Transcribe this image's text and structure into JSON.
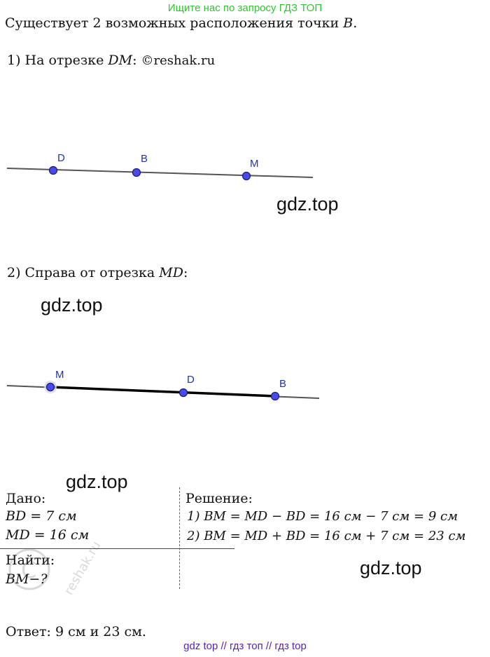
{
  "banner": {
    "text": "Ищите нас по запросу ГДЗ ТОП",
    "color": "#2fc72f"
  },
  "intro": {
    "text": "Существует 2 возможных расположения точки ",
    "point": "B",
    "end": "."
  },
  "case1": {
    "prefix": "1) На отрезке ",
    "segment": "DM",
    "colon": ": ",
    "copyright": "©reshak.ru"
  },
  "figure1": {
    "labels": [
      "D",
      "B",
      "M"
    ]
  },
  "case2": {
    "prefix": "2) Справа от отрезка ",
    "segment": "MD",
    "colon": ":"
  },
  "figure2": {
    "labels": [
      "M",
      "D",
      "B"
    ]
  },
  "watermarks": [
    "gdz.top",
    "gdz.top",
    "gdz.top",
    "gdz.top"
  ],
  "given": {
    "title": "Дано:",
    "lines": [
      "BD = 7 см",
      "MD = 16 см"
    ],
    "find_title": "Найти:",
    "find": "BM−?"
  },
  "solution": {
    "title": "Решение:",
    "lines": [
      "1) BM = MD − BD =  16 см − 7 см = 9 см",
      "2) BM = MD + BD = 16 см + 7 см = 23 см"
    ]
  },
  "answer": "Ответ: 9 см и 23 см.",
  "seal_text": "reshak.ru",
  "footer": {
    "text": "gdz top  //  гдз топ  //  гдз top",
    "color": "#5a1fb0"
  },
  "colors": {
    "point_fill": "#4a4ae6",
    "point_stroke": "#1a1a80",
    "line": "#555555",
    "label": "#2233aa"
  }
}
